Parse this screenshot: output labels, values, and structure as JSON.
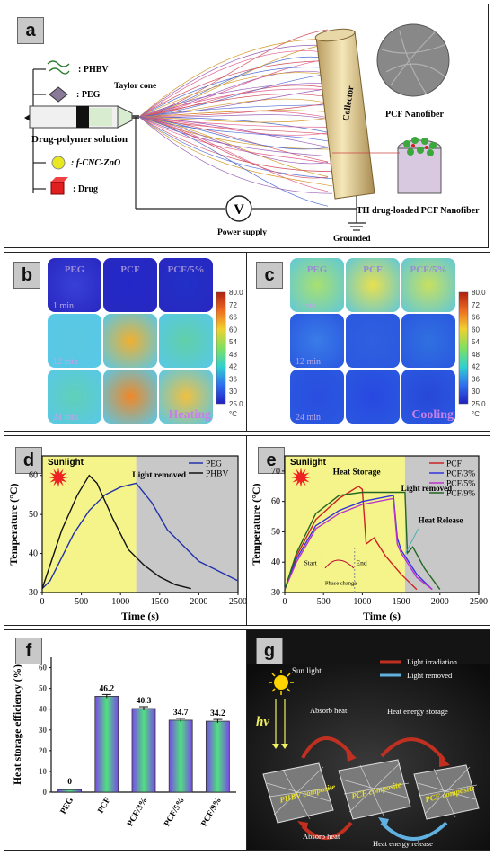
{
  "panel_a": {
    "label": "a",
    "legend": [
      ": PHBV",
      ": PEG",
      ": f-CNC-ZnO",
      ": Drug"
    ],
    "drug_polymer": "Drug-polymer solution",
    "taylor_cone": "Taylor cone",
    "collector": "Collector",
    "pcf_nanofiber": "PCF Nanofiber",
    "th_fiber": "TH drug-loaded PCF Nanofiber",
    "power_supply": "Power supply",
    "voltage": "V",
    "grounded": "Grounded"
  },
  "panel_b": {
    "label": "b",
    "cols": [
      "PEG",
      "PCF",
      "PCF/5%"
    ],
    "rows": [
      "1 min",
      "12 min",
      "24 min"
    ],
    "mode": "Heating",
    "scale": [
      "80.0",
      "72",
      "66",
      "60",
      "54",
      "48",
      "42",
      "36",
      "30",
      "25.0"
    ],
    "unit": "°C"
  },
  "panel_c": {
    "label": "c",
    "cols": [
      "PEG",
      "PCF",
      "PCF/5%"
    ],
    "rows": [
      "1 min",
      "12 min",
      "24 min"
    ],
    "mode": "Cooling",
    "scale": [
      "80.0",
      "72",
      "66",
      "60",
      "54",
      "48",
      "42",
      "36",
      "30",
      "25.0"
    ],
    "unit": "°C"
  },
  "panel_d": {
    "label": "d",
    "sunlight": "Sunlight",
    "annotation": "Light removed",
    "ylabel": "Temperature (°C)",
    "xlabel": "Time (s)",
    "xticks": [
      "0",
      "500",
      "1000",
      "1500",
      "2000",
      "2500"
    ],
    "yticks": [
      "30",
      "40",
      "50",
      "60"
    ]
  },
  "panel_e": {
    "label": "e",
    "sunlight": "Sunlight",
    "heat_storage": "Heat Storage",
    "light_removed": "Light removed",
    "heat_release": "Heat Release",
    "start": "Start",
    "end": "End",
    "phase_change": "Phase change",
    "ylabel": "Temperature (°C)",
    "xlabel": "Time (s)",
    "xticks": [
      "0",
      "500",
      "1000",
      "1500",
      "2000",
      "2500"
    ],
    "yticks": [
      "30",
      "40",
      "50",
      "60",
      "70"
    ]
  },
  "panel_f": {
    "label": "f",
    "ylabel": "Heat storage efficiency (%)",
    "yticks": [
      "0",
      "10",
      "20",
      "30",
      "40",
      "50",
      "60"
    ]
  },
  "panel_g": {
    "label": "g",
    "sun_light": "Sun light",
    "hv": "hv",
    "legend_irradiation": "Light irradiation",
    "legend_removed": "Light removed",
    "absorb_heat_top": "Absorb heat",
    "absorb_heat_bottom": "Absorb heat",
    "storage": "Heat energy storage",
    "release": "Heat energy release",
    "phbv_composite": "PHBV composite",
    "pcf_composite_1": "PCF composite",
    "pcf_composite_2": "PCF composite"
  },
  "chart_data": [
    {
      "type": "line",
      "panel": "d",
      "xlabel": "Time (s)",
      "ylabel": "Temperature (°C)",
      "xlim": [
        0,
        2500
      ],
      "ylim": [
        30,
        65
      ],
      "legend_position": "top-right",
      "series": [
        {
          "name": "PEG",
          "color": "#2233aa",
          "x": [
            0,
            100,
            250,
            400,
            600,
            800,
            1000,
            1200,
            1400,
            1600,
            1800,
            2000,
            2200,
            2400,
            2500
          ],
          "y": [
            31,
            33,
            39,
            45,
            51,
            55,
            57,
            58,
            53,
            46,
            42,
            38,
            36,
            34,
            33
          ]
        },
        {
          "name": "PHBV",
          "color": "#111111",
          "x": [
            0,
            100,
            250,
            450,
            600,
            700,
            900,
            1100,
            1300,
            1500,
            1700,
            1900
          ],
          "y": [
            31,
            37,
            46,
            55,
            60,
            58,
            49,
            41,
            37,
            34,
            32,
            31
          ]
        }
      ]
    },
    {
      "type": "line",
      "panel": "e",
      "xlabel": "Time (s)",
      "ylabel": "Temperature (°C)",
      "xlim": [
        0,
        2500
      ],
      "ylim": [
        30,
        75
      ],
      "legend_position": "top-right",
      "series": [
        {
          "name": "PCF",
          "color": "#cc2222",
          "x": [
            0,
            150,
            400,
            700,
            950,
            1000,
            1050,
            1150,
            1300,
            1500,
            1700
          ],
          "y": [
            31,
            42,
            54,
            61,
            65,
            64,
            46,
            48,
            42,
            36,
            31
          ]
        },
        {
          "name": "PCF/3%",
          "color": "#3333dd",
          "x": [
            0,
            150,
            400,
            700,
            1000,
            1400,
            1450,
            1500,
            1700,
            1900
          ],
          "y": [
            31,
            41,
            52,
            57,
            60,
            62,
            48,
            44,
            36,
            31
          ]
        },
        {
          "name": "PCF/5%",
          "color": "#bb33cc",
          "x": [
            0,
            150,
            400,
            700,
            1000,
            1400,
            1450,
            1500,
            1700,
            1900
          ],
          "y": [
            31,
            40,
            51,
            56,
            59,
            61,
            46,
            43,
            35,
            31
          ]
        },
        {
          "name": "PCF/9%",
          "color": "#226622",
          "x": [
            0,
            150,
            400,
            700,
            1000,
            1300,
            1550,
            1580,
            1650,
            1800,
            2000
          ],
          "y": [
            31,
            43,
            56,
            62,
            63,
            63,
            63,
            43,
            45,
            38,
            31
          ]
        }
      ]
    },
    {
      "type": "bar",
      "panel": "f",
      "ylabel": "Heat storage efficiency (%)",
      "ylim": [
        0,
        65
      ],
      "categories": [
        "PEG",
        "PCF",
        "PCF/3%",
        "PCF/5%",
        "PCF/9%"
      ],
      "values": [
        0,
        46.2,
        40.3,
        34.7,
        34.2
      ],
      "value_labels": [
        "0",
        "46.2",
        "40.3",
        "34.7",
        "34.2"
      ]
    }
  ]
}
